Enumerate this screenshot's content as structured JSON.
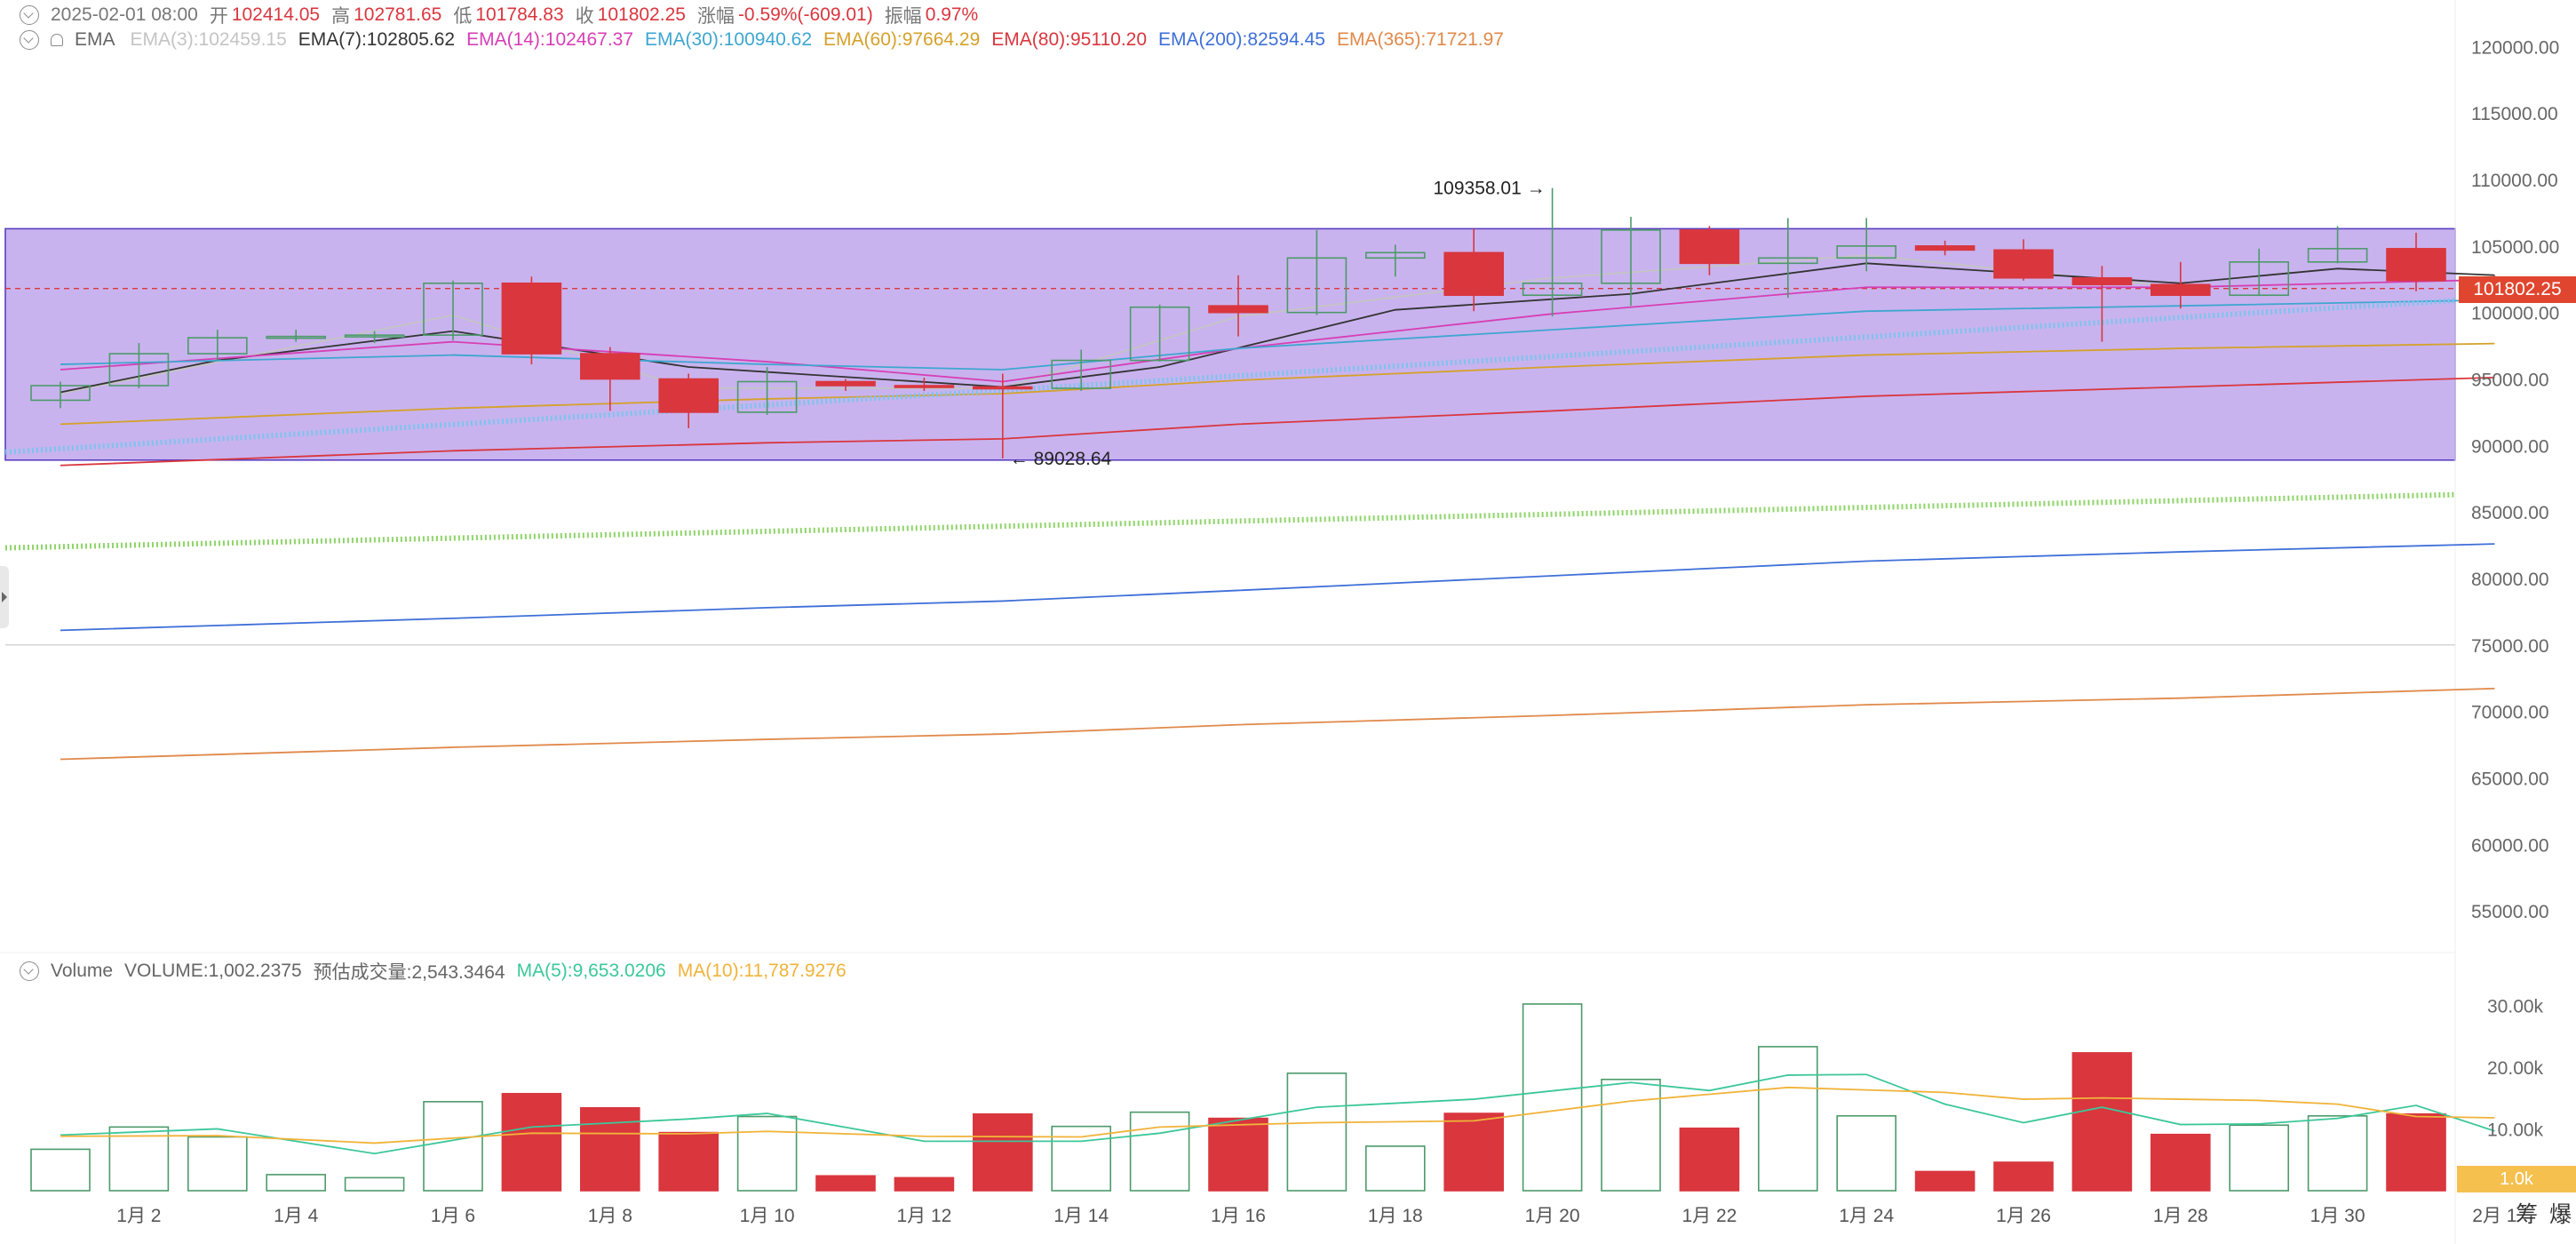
{
  "header": {
    "date": "2025-02-01 08:00",
    "open_label": "开",
    "open": "102414.05",
    "high_label": "高",
    "high": "102781.65",
    "low_label": "低",
    "low": "101784.83",
    "close_label": "收",
    "close": "101802.25",
    "change_label": "涨幅",
    "change": "-0.59%(-609.01)",
    "amplitude_label": "振幅",
    "amplitude": "0.97%"
  },
  "ema_row": {
    "name": "EMA",
    "items": [
      {
        "text": "EMA(3):102459.15",
        "color": "#c4c4c4"
      },
      {
        "text": "EMA(7):102805.62",
        "color": "#333333"
      },
      {
        "text": "EMA(14):102467.37",
        "color": "#d63fb5"
      },
      {
        "text": "EMA(30):100940.62",
        "color": "#3ea6d0"
      },
      {
        "text": "EMA(60):97664.29",
        "color": "#d4a12a"
      },
      {
        "text": "EMA(80):95110.20",
        "color": "#d9363e"
      },
      {
        "text": "EMA(200):82594.45",
        "color": "#3e6fd8"
      },
      {
        "text": "EMA(365):71721.97",
        "color": "#e0894a"
      }
    ]
  },
  "volume_row": {
    "name": "Volume",
    "volume_text": "VOLUME:1,002.2375",
    "estimate_text": "预估成交量:2,543.3464",
    "ma5_text": "MA(5):9,653.0206",
    "ma10_text": "MA(10):11,787.9276",
    "ma5_color": "#3cc79a",
    "ma10_color": "#f0b33a"
  },
  "last_price_label": "101802.25",
  "volume_badge": "1.0k",
  "corner_labels": [
    "筹",
    "爆"
  ],
  "colors": {
    "up": "#4c9a6a",
    "down": "#d9363e",
    "box_fill": "#c9b3ee",
    "box_border": "#5a3fc0"
  },
  "chart_data": [
    {
      "type": "candlestick",
      "title": "",
      "xlabel": "",
      "ylabel": "",
      "ylim": [
        52000,
        123500
      ],
      "y_ticks": [
        "120000.00",
        "115000.00",
        "110000.00",
        "105000.00",
        "100000.00",
        "95000.00",
        "90000.00",
        "85000.00",
        "80000.00",
        "75000.00",
        "70000.00",
        "65000.00",
        "60000.00",
        "55000.00"
      ],
      "x_ticks": [
        {
          "day": 2,
          "label": "1月 2"
        },
        {
          "day": 4,
          "label": "1月 4"
        },
        {
          "day": 6,
          "label": "1月 6"
        },
        {
          "day": 8,
          "label": "1月 8"
        },
        {
          "day": 10,
          "label": "1月 10"
        },
        {
          "day": 12,
          "label": "1月 12"
        },
        {
          "day": 14,
          "label": "1月 14"
        },
        {
          "day": 16,
          "label": "1月 16"
        },
        {
          "day": 18,
          "label": "1月 18"
        },
        {
          "day": 20,
          "label": "1月 20"
        },
        {
          "day": 22,
          "label": "1月 22"
        },
        {
          "day": 24,
          "label": "1月 24"
        },
        {
          "day": 26,
          "label": "1月 26"
        },
        {
          "day": 28,
          "label": "1月 28"
        },
        {
          "day": 30,
          "label": "1月 30"
        },
        {
          "day": 32,
          "label": "2月 1"
        }
      ],
      "candles": [
        {
          "day": 1,
          "open": 93400,
          "high": 94800,
          "low": 92800,
          "close": 94500
        },
        {
          "day": 2,
          "open": 94500,
          "high": 97700,
          "low": 94300,
          "close": 96900
        },
        {
          "day": 3,
          "open": 96900,
          "high": 98700,
          "low": 96400,
          "close": 98100
        },
        {
          "day": 4,
          "open": 98100,
          "high": 98700,
          "low": 97800,
          "close": 98200
        },
        {
          "day": 5,
          "open": 98200,
          "high": 98600,
          "low": 97700,
          "close": 98300
        },
        {
          "day": 6,
          "open": 98300,
          "high": 102400,
          "low": 97900,
          "close": 102200
        },
        {
          "day": 7,
          "open": 102200,
          "high": 102700,
          "low": 96100,
          "close": 96900
        },
        {
          "day": 8,
          "open": 96900,
          "high": 97400,
          "low": 92600,
          "close": 95000
        },
        {
          "day": 9,
          "open": 95000,
          "high": 95400,
          "low": 91300,
          "close": 92500
        },
        {
          "day": 10,
          "open": 92500,
          "high": 95900,
          "low": 92300,
          "close": 94800
        },
        {
          "day": 11,
          "open": 94800,
          "high": 95000,
          "low": 94100,
          "close": 94500
        },
        {
          "day": 12,
          "open": 94500,
          "high": 95100,
          "low": 94100,
          "close": 94400
        },
        {
          "day": 13,
          "open": 94400,
          "high": 95400,
          "low": 89028.64,
          "close": 94300
        },
        {
          "day": 14,
          "open": 94300,
          "high": 97200,
          "low": 94100,
          "close": 96400
        },
        {
          "day": 15,
          "open": 96400,
          "high": 100600,
          "low": 96300,
          "close": 100400
        },
        {
          "day": 16,
          "open": 100500,
          "high": 102800,
          "low": 98200,
          "close": 100000
        },
        {
          "day": 17,
          "open": 100000,
          "high": 106200,
          "low": 99800,
          "close": 104100
        },
        {
          "day": 18,
          "open": 104100,
          "high": 105100,
          "low": 102700,
          "close": 104500
        },
        {
          "day": 19,
          "open": 104500,
          "high": 106300,
          "low": 100100,
          "close": 101300
        },
        {
          "day": 20,
          "open": 101300,
          "high": 109358.01,
          "low": 99700,
          "close": 102200
        },
        {
          "day": 21,
          "open": 102200,
          "high": 107200,
          "low": 100500,
          "close": 106200
        },
        {
          "day": 22,
          "open": 106200,
          "high": 106500,
          "low": 102800,
          "close": 103700
        },
        {
          "day": 23,
          "open": 103700,
          "high": 107100,
          "low": 101100,
          "close": 104100
        },
        {
          "day": 24,
          "open": 104100,
          "high": 107100,
          "low": 103100,
          "close": 105000
        },
        {
          "day": 25,
          "open": 105000,
          "high": 105400,
          "low": 104300,
          "close": 104700
        },
        {
          "day": 26,
          "open": 104700,
          "high": 105500,
          "low": 102400,
          "close": 102600
        },
        {
          "day": 27,
          "open": 102600,
          "high": 103500,
          "low": 97800,
          "close": 102100
        },
        {
          "day": 28,
          "open": 102100,
          "high": 103800,
          "low": 100300,
          "close": 101300
        },
        {
          "day": 29,
          "open": 101300,
          "high": 104800,
          "low": 101300,
          "close": 103800
        },
        {
          "day": 30,
          "open": 103800,
          "high": 106500,
          "low": 103700,
          "close": 104800
        },
        {
          "day": 31,
          "open": 104800,
          "high": 106000,
          "low": 101600,
          "close": 102400
        },
        {
          "day": 32,
          "open": 102414.05,
          "high": 102781.65,
          "low": 101784.83,
          "close": 101802.25
        }
      ],
      "annotations": [
        {
          "text": "109358.01",
          "day": 20,
          "value": 109358.01,
          "side": "left"
        },
        {
          "text": "89028.64",
          "day": 13,
          "value": 89028.64,
          "side": "right"
        }
      ],
      "range_box": {
        "top": 106300,
        "bottom": 88900
      },
      "last_price": 101802.25,
      "series": [
        {
          "name": "EMA(3)",
          "color": "#c4c4c4",
          "style": "solid",
          "x": [
            1,
            6,
            9,
            13,
            16,
            20,
            24,
            28,
            32
          ],
          "values": [
            93900,
            99800,
            94300,
            94300,
            99700,
            102600,
            104300,
            101900,
            102459.15
          ]
        },
        {
          "name": "EMA(7)",
          "color": "#333333",
          "style": "solid",
          "x": [
            1,
            3,
            6,
            9,
            13,
            15,
            18,
            21,
            24,
            28,
            30,
            32
          ],
          "values": [
            94000,
            96400,
            98600,
            95900,
            94400,
            95900,
            100200,
            101400,
            103700,
            102200,
            103300,
            102805.62
          ]
        },
        {
          "name": "EMA(14)",
          "color": "#d63fb5",
          "style": "solid",
          "x": [
            1,
            6,
            10,
            13,
            16,
            20,
            24,
            28,
            32
          ],
          "values": [
            95700,
            97800,
            96300,
            94800,
            97300,
            99900,
            101900,
            101900,
            102467.37
          ]
        },
        {
          "name": "EMA(30)",
          "color": "#3ea6d0",
          "style": "solid",
          "x": [
            1,
            6,
            10,
            13,
            16,
            20,
            24,
            28,
            32
          ],
          "values": [
            96100,
            96800,
            96100,
            95700,
            97300,
            98700,
            100100,
            100500,
            100940.62
          ]
        },
        {
          "name": "EMA(60)",
          "color": "#d4a12a",
          "style": "solid",
          "x": [
            1,
            6,
            10,
            13,
            16,
            20,
            24,
            28,
            32
          ],
          "values": [
            91600,
            92800,
            93500,
            93900,
            94900,
            95900,
            96800,
            97300,
            97664.29
          ]
        },
        {
          "name": "EMA(80)",
          "color": "#d9363e",
          "style": "solid",
          "x": [
            1,
            6,
            10,
            13,
            16,
            20,
            24,
            28,
            32
          ],
          "values": [
            88500,
            89600,
            90200,
            90500,
            91600,
            92600,
            93700,
            94400,
            95110.2
          ]
        },
        {
          "name": "EMA(200)",
          "color": "#3e6fd8",
          "style": "solid",
          "x": [
            1,
            6,
            10,
            13,
            16,
            20,
            24,
            28,
            32
          ],
          "values": [
            76100,
            77000,
            77800,
            78300,
            79100,
            80200,
            81300,
            82000,
            82594.45
          ]
        },
        {
          "name": "EMA(365)",
          "color": "#e0894a",
          "style": "solid",
          "x": [
            1,
            6,
            10,
            13,
            16,
            20,
            24,
            28,
            32
          ],
          "values": [
            66400,
            67300,
            67900,
            68300,
            69000,
            69700,
            70500,
            71000,
            71721.97
          ]
        },
        {
          "color": "#7cc4ee",
          "style": "dotted",
          "x": [
            0,
            32.2
          ],
          "values": [
            89500,
            100900
          ]
        },
        {
          "color": "#8fd46a",
          "style": "dotted",
          "x": [
            0,
            32.2
          ],
          "values": [
            82300,
            86300
          ]
        }
      ]
    },
    {
      "type": "bar",
      "title": "Volume",
      "ylim": [
        0,
        34500
      ],
      "y_ticks": [
        {
          "value": 10000,
          "label": "10.00k"
        },
        {
          "value": 20000,
          "label": "20.00k"
        },
        {
          "value": 30000,
          "label": "30.00k"
        }
      ],
      "x": [
        1,
        2,
        3,
        4,
        5,
        6,
        7,
        8,
        9,
        10,
        11,
        12,
        13,
        14,
        15,
        16,
        17,
        18,
        19,
        20,
        21,
        22,
        23,
        24,
        25,
        26,
        27,
        28,
        29,
        30,
        31,
        32
      ],
      "values": [
        6700,
        10300,
        8700,
        2600,
        2100,
        14400,
        15700,
        13400,
        9400,
        12000,
        2400,
        2100,
        12400,
        10400,
        12700,
        11700,
        19000,
        7200,
        12500,
        30200,
        18000,
        10100,
        23300,
        12100,
        3100,
        4600,
        22300,
        9100,
        10600,
        12100,
        12400,
        1002
      ],
      "up": [
        true,
        true,
        true,
        true,
        true,
        true,
        false,
        false,
        false,
        true,
        false,
        false,
        false,
        true,
        true,
        false,
        true,
        true,
        false,
        true,
        true,
        false,
        true,
        true,
        false,
        false,
        false,
        false,
        true,
        true,
        false,
        false
      ],
      "series": [
        {
          "name": "MA(5)",
          "color": "#3cc79a",
          "x": [
            1,
            3,
            5,
            7,
            9,
            10,
            12,
            14,
            15,
            17,
            19,
            21,
            22,
            23,
            24,
            25,
            26,
            27,
            28,
            29,
            30,
            31,
            32
          ],
          "values": [
            9000,
            10000,
            6000,
            10300,
            11600,
            12500,
            8000,
            8000,
            9300,
            13500,
            14800,
            17500,
            16200,
            18700,
            18800,
            14000,
            11000,
            13500,
            10700,
            10800,
            11700,
            13800,
            9653.02
          ]
        },
        {
          "name": "MA(10)",
          "color": "#f0b33a",
          "x": [
            1,
            3,
            5,
            7,
            9,
            10,
            12,
            14,
            15,
            17,
            19,
            21,
            22,
            23,
            24,
            25,
            26,
            27,
            28,
            29,
            30,
            31,
            32
          ],
          "values": [
            8800,
            8900,
            7700,
            9300,
            9200,
            9600,
            8800,
            8700,
            10300,
            11000,
            11300,
            14500,
            15600,
            16700,
            16300,
            15900,
            14800,
            15000,
            14800,
            14600,
            14000,
            12000,
            11787.93
          ]
        }
      ]
    }
  ]
}
